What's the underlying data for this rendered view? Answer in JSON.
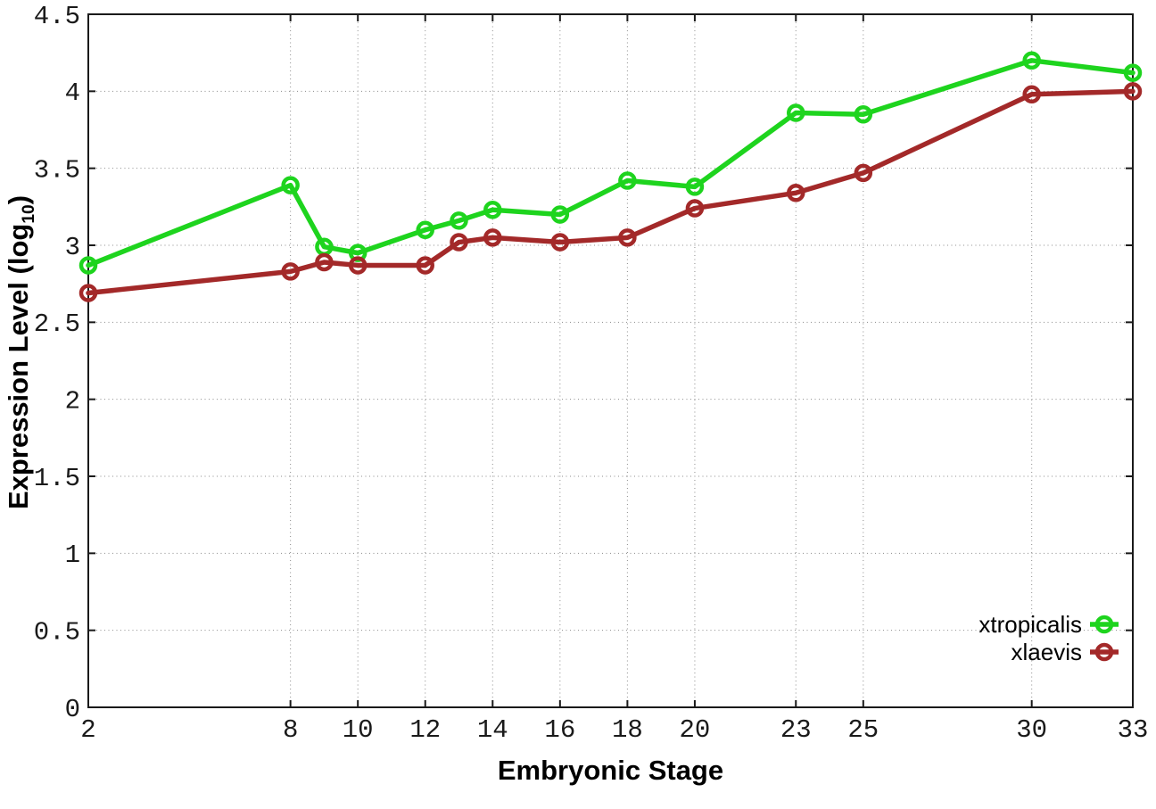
{
  "chart_data": {
    "type": "line",
    "xlabel": "Embryonic Stage",
    "ylabel_prefix": "Expression Level (log",
    "ylabel_subscript": "10",
    "ylabel_suffix": ")",
    "x": [
      2,
      8,
      9,
      10,
      12,
      13,
      14,
      16,
      18,
      20,
      23,
      25,
      30,
      33
    ],
    "xlim": [
      2,
      33
    ],
    "ylim": [
      0,
      4.5
    ],
    "x_ticks": [
      2,
      8,
      10,
      12,
      14,
      16,
      18,
      20,
      23,
      25,
      30,
      33
    ],
    "x_tick_labels": [
      "2",
      "8",
      "10",
      "12",
      "14",
      "16",
      "18",
      "20",
      "23",
      "25",
      "30",
      "33"
    ],
    "y_ticks": [
      0,
      0.5,
      1,
      1.5,
      2,
      2.5,
      3,
      3.5,
      4,
      4.5
    ],
    "y_tick_labels": [
      "0",
      "0.5",
      "1",
      "1.5",
      "2",
      "2.5",
      "3",
      "3.5",
      "4",
      "4.5"
    ],
    "grid": true,
    "legend_position": "inside-bottom-right",
    "series": [
      {
        "name": "xtropicalis",
        "color": "#1ed41e",
        "values": [
          2.87,
          3.39,
          2.99,
          2.95,
          3.1,
          3.16,
          3.23,
          3.2,
          3.42,
          3.38,
          3.86,
          3.85,
          4.2,
          4.12
        ]
      },
      {
        "name": "xlaevis",
        "color": "#a32929",
        "values": [
          2.69,
          2.83,
          2.89,
          2.87,
          2.87,
          3.02,
          3.05,
          3.02,
          3.05,
          3.24,
          3.34,
          3.47,
          3.98,
          4.0
        ]
      }
    ],
    "style": {
      "border_color": "#1a1a1a",
      "grid_color": "#8c8c8c",
      "tick_label_color": "#1a1a1a",
      "background": "#ffffff"
    }
  }
}
